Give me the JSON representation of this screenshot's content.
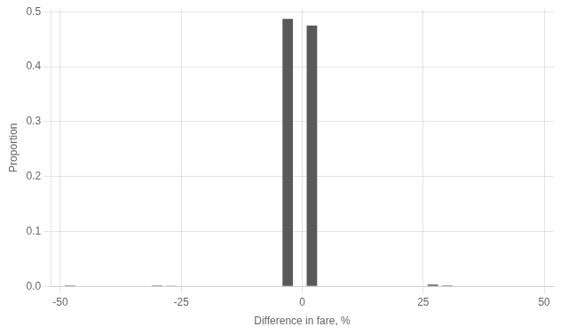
{
  "chart_data": {
    "type": "bar",
    "xlabel": "Difference in fare, %",
    "ylabel": "Proportion",
    "x": [
      -48,
      -45,
      -42,
      -39,
      -36,
      -33,
      -30,
      -27,
      -24,
      -21,
      -18,
      -15,
      -12,
      -9,
      -6,
      -3,
      2,
      6,
      9,
      12,
      15,
      18,
      21,
      24,
      27,
      30,
      33,
      36,
      39,
      42,
      45,
      48
    ],
    "values": [
      0.0015,
      0.0008,
      0.0008,
      0.0008,
      0.0008,
      0.0008,
      0.0015,
      0.0012,
      0.0008,
      0.0008,
      0.0008,
      0.0008,
      0.0008,
      0.0008,
      0.0008,
      0.487,
      0.475,
      0.0008,
      0.0008,
      0.0008,
      0.0008,
      0.0008,
      0.0008,
      0.0008,
      0.003,
      0.0015,
      0.0008,
      0.0008,
      0.0008,
      0.0008,
      0.0008,
      0.0008
    ],
    "color": "#595959",
    "xlim": [
      -52,
      52
    ],
    "xticks": [
      -50,
      -25,
      0,
      25,
      50
    ],
    "ylim": [
      0.0,
      0.505
    ],
    "yticks": [
      {
        "value": 0.0,
        "label": "0.0"
      },
      0.1,
      0.2,
      0.3,
      0.4,
      0.5
    ],
    "grid": true
  }
}
